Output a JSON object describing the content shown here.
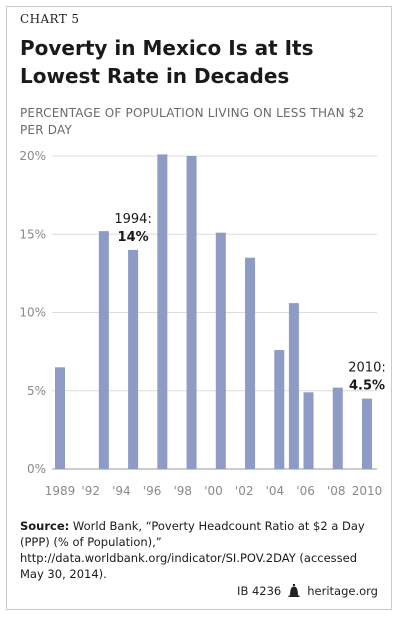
{
  "header": {
    "kicker": "CHART 5",
    "title": "Poverty in Mexico Is at Its Lowest Rate in Decades",
    "subtitle": "PERCENTAGE OF POPULATION LIVING ON LESS THAN $2 PER DAY"
  },
  "chart_data": {
    "type": "bar",
    "title": "Poverty in Mexico Is at Its Lowest Rate in Decades",
    "ylabel": "PERCENTAGE OF POPULATION LIVING ON LESS THAN $2 PER DAY",
    "xlabel": "",
    "x_ticks": [
      "1989",
      "'92",
      "'94",
      "'96",
      "'98",
      "'00",
      "'02",
      "'04",
      "'06",
      "'08",
      "2010"
    ],
    "y_ticks": [
      "0%",
      "5%",
      "10%",
      "15%",
      "20%"
    ],
    "ylim": [
      0,
      20
    ],
    "xlim": [
      1989,
      2010
    ],
    "grid": true,
    "bar_color": "#8e9bc4",
    "points": [
      {
        "x": 1989,
        "y": 6.5
      },
      {
        "x": 1992,
        "y": 15.2
      },
      {
        "x": 1994,
        "y": 14.0
      },
      {
        "x": 1996,
        "y": 20.1
      },
      {
        "x": 1998,
        "y": 20.0
      },
      {
        "x": 2000,
        "y": 15.1
      },
      {
        "x": 2002,
        "y": 13.5
      },
      {
        "x": 2004,
        "y": 7.6
      },
      {
        "x": 2005,
        "y": 10.6
      },
      {
        "x": 2006,
        "y": 4.9
      },
      {
        "x": 2008,
        "y": 5.2
      },
      {
        "x": 2010,
        "y": 4.5
      }
    ],
    "annotations": [
      {
        "x": 1994,
        "y": 14.0,
        "label": "1994:",
        "value": "14%"
      },
      {
        "x": 2010,
        "y": 4.5,
        "label": "2010:",
        "value": "4.5%"
      }
    ]
  },
  "source": {
    "label": "Source:",
    "text": "World Bank, “Poverty Headcount Ratio at $2 a Day (PPP) (% of Population),” http://data.worldbank.org/indicator/SI.POV.2DAY (accessed May 30, 2014)."
  },
  "footer": {
    "ib": "IB 4236",
    "site": "heritage.org",
    "logo_icon": "liberty-bell-icon"
  }
}
